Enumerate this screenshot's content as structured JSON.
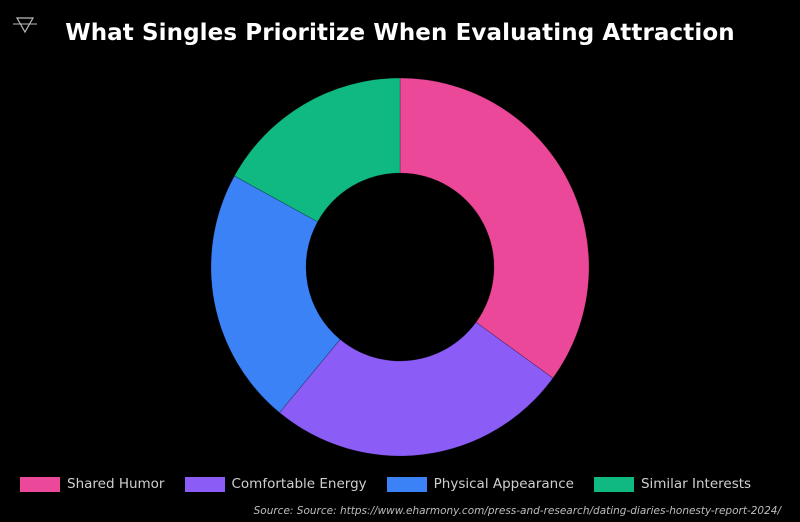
{
  "header": {
    "title": "What Singles Prioritize When Evaluating Attraction",
    "logo_icon": "triangle-down-logo-icon"
  },
  "legend": {
    "items": [
      {
        "label": "Shared Humor",
        "color": "#ec4899"
      },
      {
        "label": "Comfortable Energy",
        "color": "#8b5cf6"
      },
      {
        "label": "Physical Appearance",
        "color": "#3b82f6"
      },
      {
        "label": "Similar Interests",
        "color": "#10b981"
      }
    ]
  },
  "footer": {
    "source": "Source: Source: https://www.eharmony.com/press-and-research/dating-diaries-honesty-report-2024/"
  },
  "chart_data": {
    "type": "pie",
    "subtype": "donut",
    "title": "What Singles Prioritize When Evaluating Attraction",
    "categories": [
      "Shared Humor",
      "Comfortable Energy",
      "Physical Appearance",
      "Similar Interests"
    ],
    "values": [
      35,
      26,
      22,
      17
    ],
    "unit": "%",
    "colors": [
      "#ec4899",
      "#8b5cf6",
      "#3b82f6",
      "#10b981"
    ],
    "start_angle_deg": 0,
    "direction": "clockwise",
    "inner_radius_ratio": 0.5,
    "legend_position": "bottom",
    "data_labels": false,
    "source": "Source: Source: https://www.eharmony.com/press-and-research/dating-diaries-honesty-report-2024/"
  }
}
